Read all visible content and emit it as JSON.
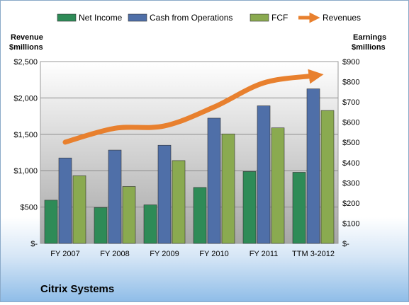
{
  "chart_data": {
    "type": "bar",
    "company_label": "Citrix Systems",
    "left_axis_title": [
      "Revenue",
      "$millions"
    ],
    "right_axis_title": [
      "Earnings",
      "$millions"
    ],
    "categories": [
      "FY 2007",
      "FY 2008",
      "FY 2009",
      "FY 2010",
      "FY 2011",
      "TTM 3-2012"
    ],
    "left_ticks": [
      "$-",
      "$500",
      "$1,000",
      "$1,500",
      "$2,000",
      "$2,500"
    ],
    "right_ticks": [
      "$-",
      "$100",
      "$200",
      "$300",
      "$400",
      "$500",
      "$600",
      "$700",
      "$800",
      "$900"
    ],
    "left_ylim": [
      0,
      2500
    ],
    "right_ylim": [
      0,
      900
    ],
    "legend_position": "top",
    "grid": true,
    "series": [
      {
        "name": "Net Income",
        "axis": "right",
        "color": "#2e8b57",
        "values": [
          214,
          178,
          191,
          277,
          356,
          352
        ]
      },
      {
        "name": "Cash from Operations",
        "axis": "right",
        "color": "#4f6fa8",
        "values": [
          423,
          462,
          486,
          620,
          681,
          765
        ]
      },
      {
        "name": "FCF",
        "axis": "right",
        "color": "#8aaa50",
        "values": [
          335,
          282,
          410,
          542,
          572,
          658
        ]
      },
      {
        "name": "Revenues",
        "axis": "left",
        "type": "line",
        "color": "#e8802e",
        "values": [
          1392,
          1583,
          1615,
          1875,
          2207,
          2304
        ]
      }
    ]
  }
}
